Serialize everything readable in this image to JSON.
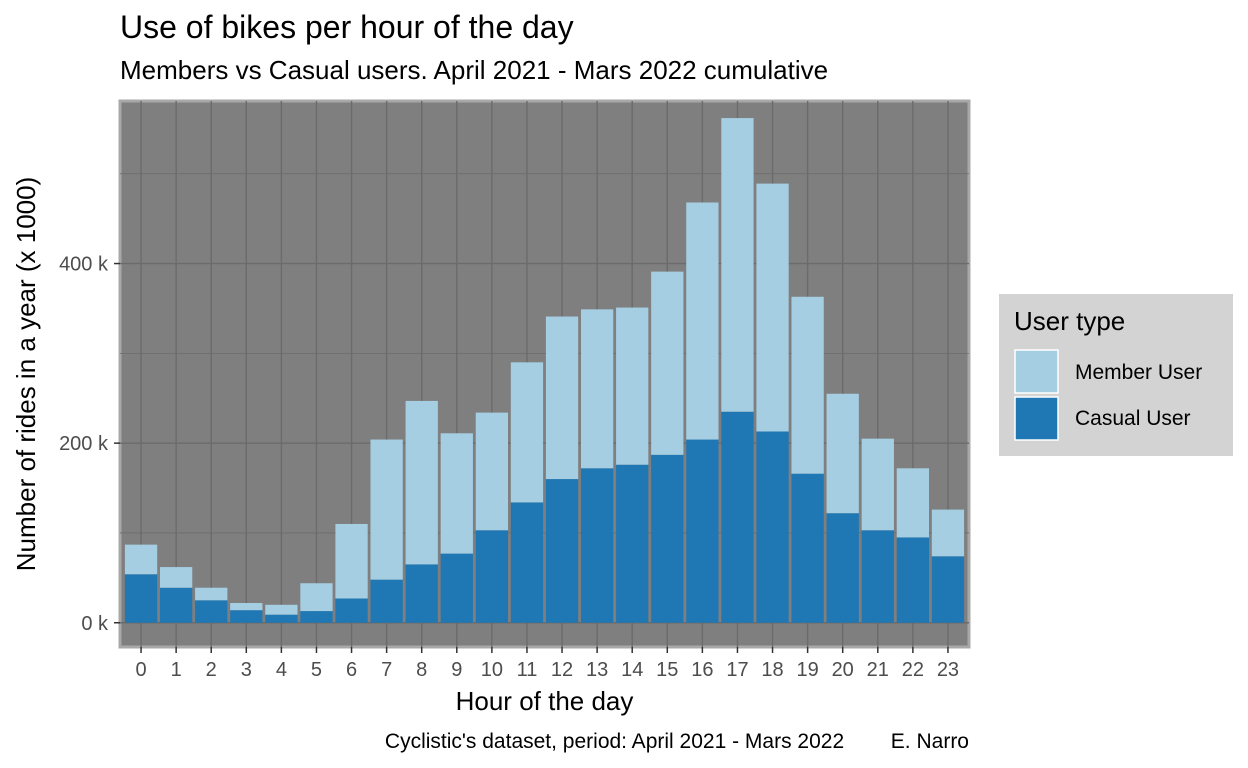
{
  "chart_data": {
    "type": "bar",
    "stacked": true,
    "title": "Use of bikes per hour of the day",
    "subtitle": "Members vs Casual users. April 2021 - Mars 2022 cumulative",
    "xlabel": "Hour of the day",
    "ylabel": "Number of rides in a year (x 1000)",
    "caption": "Cyclistic's dataset, period: April 2021 - Mars 2022        E. Narro",
    "categories": [
      "0",
      "1",
      "2",
      "3",
      "4",
      "5",
      "6",
      "7",
      "8",
      "9",
      "10",
      "11",
      "12",
      "13",
      "14",
      "15",
      "16",
      "17",
      "18",
      "19",
      "20",
      "21",
      "22",
      "23"
    ],
    "ylim": [
      -27,
      581
    ],
    "yticks": [
      0,
      200,
      400
    ],
    "ytick_labels": [
      "0 k",
      "200 k",
      "400 k"
    ],
    "grid": true,
    "legend": {
      "title": "User type",
      "position": "right"
    },
    "series": [
      {
        "name": "Casual User",
        "color": "#1f78b4",
        "values": [
          54,
          39,
          25,
          14,
          9,
          13,
          27,
          48,
          65,
          77,
          103,
          134,
          160,
          172,
          176,
          187,
          204,
          235,
          213,
          166,
          122,
          103,
          95,
          74
        ]
      },
      {
        "name": "Member User",
        "color": "#a6cee3",
        "values": [
          33,
          23,
          14,
          8,
          11,
          31,
          83,
          156,
          182,
          134,
          131,
          156,
          181,
          177,
          175,
          204,
          264,
          327,
          276,
          197,
          133,
          102,
          77,
          52
        ]
      }
    ],
    "colors": {
      "panel": "#7f7f7f",
      "grid": "#6b6b6b",
      "legend_bg": "#d3d3d3"
    }
  }
}
